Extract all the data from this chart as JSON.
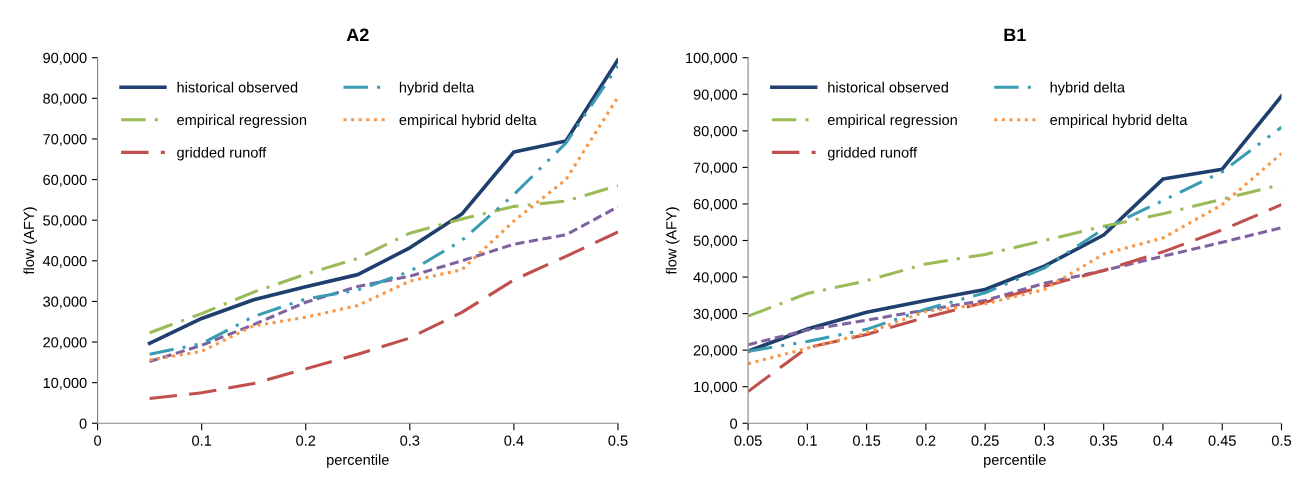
{
  "chart_data": [
    {
      "type": "line",
      "title": "A2",
      "xlabel": "percentile",
      "ylabel": "flow (AFY)",
      "x": [
        0.05,
        0.1,
        0.15,
        0.2,
        0.25,
        0.3,
        0.35,
        0.4,
        0.45,
        0.5
      ],
      "xlim": [
        0,
        0.5
      ],
      "xticks": [
        0,
        0.1,
        0.2,
        0.3,
        0.4,
        0.5
      ],
      "ylim": [
        0,
        90000
      ],
      "yticks": [
        {
          "value": 0,
          "label": "0"
        },
        {
          "value": 10000,
          "label": "10,000"
        },
        {
          "value": 20000,
          "label": "20,000"
        },
        {
          "value": 30000,
          "label": "30,000"
        },
        {
          "value": 40000,
          "label": "40,000"
        },
        {
          "value": 50000,
          "label": "50,000"
        },
        {
          "value": 60000,
          "label": "60,000"
        },
        {
          "value": 70000,
          "label": "70,000"
        },
        {
          "value": 80000,
          "label": "80,000"
        },
        {
          "value": 90000,
          "label": "90,000"
        }
      ],
      "grid": false,
      "legend": "top left",
      "marker": "none",
      "series": [
        {
          "name": "historical observed",
          "color": "#1f3f6e",
          "line_style": "solid",
          "values": [
            19700,
            25800,
            30400,
            33600,
            36600,
            43200,
            51500,
            66800,
            69500,
            89500
          ]
        },
        {
          "color": "#7f63a1",
          "line_style": "dashed",
          "values": [
            15200,
            19200,
            24300,
            29800,
            33700,
            36200,
            40000,
            44100,
            46400,
            53300
          ]
        },
        {
          "name": "empirical regression",
          "color": "#9bbb59",
          "line_style": "dashdot",
          "values": [
            22300,
            27000,
            32300,
            36700,
            40600,
            46800,
            50300,
            53400,
            54700,
            58500
          ]
        },
        {
          "name": "gridded runoff",
          "color": "#c0504d",
          "line_style": "longdash",
          "values": [
            6100,
            7500,
            9800,
            13400,
            17000,
            21000,
            27300,
            35300,
            41100,
            47100
          ]
        },
        {
          "name": "hybrid delta",
          "color": "#3b9bb3",
          "line_style": "dashdotdot",
          "values": [
            17000,
            19600,
            26300,
            30600,
            32800,
            37400,
            45000,
            56300,
            69000,
            88000
          ]
        },
        {
          "name": "empirical hybrid delta",
          "color": "#f79646",
          "line_style": "dotted",
          "values": [
            15600,
            17700,
            24000,
            26100,
            29000,
            35000,
            37800,
            49800,
            60000,
            80300
          ]
        }
      ]
    },
    {
      "type": "line",
      "title": "B1",
      "xlabel": "percentile",
      "ylabel": "flow (AFY)",
      "x": [
        0.05,
        0.1,
        0.15,
        0.2,
        0.25,
        0.3,
        0.35,
        0.4,
        0.45,
        0.5
      ],
      "xlim": [
        0.05,
        0.5
      ],
      "xticks": [
        0.05,
        0.1,
        0.15,
        0.2,
        0.25,
        0.3,
        0.35,
        0.4,
        0.45,
        0.5
      ],
      "ylim": [
        0,
        100000
      ],
      "yticks": [
        {
          "value": 0,
          "label": "0"
        },
        {
          "value": 10000,
          "label": "10,000"
        },
        {
          "value": 20000,
          "label": "20,000"
        },
        {
          "value": 30000,
          "label": "30,000"
        },
        {
          "value": 40000,
          "label": "40,000"
        },
        {
          "value": 50000,
          "label": "50,000"
        },
        {
          "value": 60000,
          "label": "60,000"
        },
        {
          "value": 70000,
          "label": "70,000"
        },
        {
          "value": 80000,
          "label": "80,000"
        },
        {
          "value": 90000,
          "label": "90,000"
        },
        {
          "value": 100000,
          "label": "100,000"
        }
      ],
      "grid": false,
      "legend": "top left",
      "marker": "none",
      "series": [
        {
          "name": "historical observed",
          "color": "#1f3f6e",
          "line_style": "solid",
          "values": [
            19700,
            25800,
            30400,
            33600,
            36600,
            43000,
            51500,
            66800,
            69500,
            89500
          ]
        },
        {
          "color": "#7f63a1",
          "line_style": "dashed",
          "values": [
            21500,
            25500,
            28200,
            31000,
            33600,
            38300,
            41800,
            45700,
            49500,
            53500
          ]
        },
        {
          "name": "empirical regression",
          "color": "#9bbb59",
          "line_style": "dashdot",
          "values": [
            29300,
            35500,
            39000,
            43600,
            46200,
            50000,
            53900,
            57300,
            61300,
            65300
          ]
        },
        {
          "name": "gridded runoff",
          "color": "#c0504d",
          "line_style": "longdash",
          "values": [
            8700,
            20700,
            24300,
            29000,
            33100,
            37500,
            41800,
            46900,
            52900,
            59800
          ]
        },
        {
          "name": "hybrid delta",
          "color": "#3b9bb3",
          "line_style": "dashdotdot",
          "values": [
            19700,
            22400,
            25700,
            31200,
            35700,
            42500,
            53200,
            60900,
            68800,
            81000
          ]
        },
        {
          "name": "empirical hybrid delta",
          "color": "#f79646",
          "line_style": "dotted",
          "values": [
            16300,
            20500,
            24700,
            30600,
            32700,
            36600,
            46300,
            50700,
            59800,
            73800
          ]
        }
      ]
    }
  ]
}
